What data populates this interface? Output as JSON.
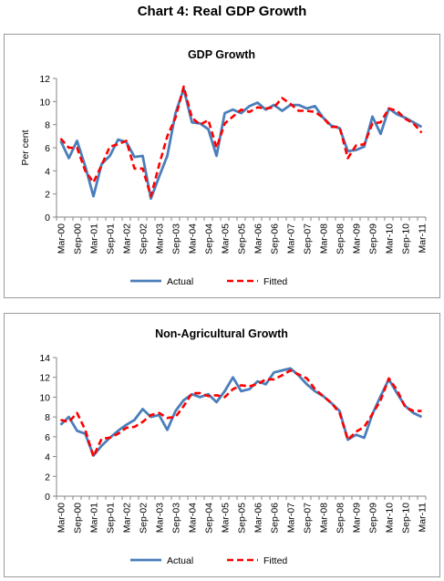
{
  "figure_title": "Chart 4: Real GDP Growth",
  "chart_data": [
    {
      "type": "line",
      "title": "GDP Growth",
      "xlabel": "",
      "ylabel": "Per cent",
      "ylim": [
        0,
        12
      ],
      "yticks": [
        0,
        2,
        4,
        6,
        8,
        10,
        12
      ],
      "grid": false,
      "legend": "bottom",
      "x": [
        "Mar-00",
        "Jun-00",
        "Sep-00",
        "Dec-00",
        "Mar-01",
        "Jun-01",
        "Sep-01",
        "Dec-01",
        "Mar-02",
        "Jun-02",
        "Sep-02",
        "Dec-02",
        "Mar-03",
        "Jun-03",
        "Sep-03",
        "Dec-03",
        "Mar-04",
        "Jun-04",
        "Sep-04",
        "Dec-04",
        "Mar-05",
        "Jun-05",
        "Sep-05",
        "Dec-05",
        "Mar-06",
        "Jun-06",
        "Sep-06",
        "Dec-06",
        "Mar-07",
        "Jun-07",
        "Sep-07",
        "Dec-07",
        "Mar-08",
        "Jun-08",
        "Sep-08",
        "Dec-08",
        "Mar-09",
        "Jun-09",
        "Sep-09",
        "Dec-09",
        "Mar-10",
        "Jun-10",
        "Sep-10",
        "Dec-10",
        "Mar-11"
      ],
      "tick_labels": [
        "Mar-00",
        "Sep-00",
        "Mar-01",
        "Sep-01",
        "Mar-02",
        "Sep-02",
        "Mar-03",
        "Sep-03",
        "Mar-04",
        "Sep-04",
        "Mar-05",
        "Sep-05",
        "Mar-06",
        "Sep-06",
        "Mar-07",
        "Sep-07",
        "Mar-08",
        "Sep-08",
        "Mar-09",
        "Sep-09",
        "Mar-10",
        "Sep-10",
        "Mar-11"
      ],
      "series": [
        {
          "name": "Actual",
          "color": "#4a7ebb",
          "style": "solid",
          "values": [
            6.6,
            5.1,
            6.6,
            4.4,
            1.8,
            4.6,
            5.3,
            6.7,
            6.5,
            5.2,
            5.3,
            1.6,
            3.5,
            5.3,
            9.0,
            11.1,
            8.2,
            8.1,
            7.6,
            5.3,
            9.0,
            9.3,
            9.0,
            9.6,
            9.9,
            9.3,
            9.7,
            9.2,
            9.7,
            9.7,
            9.4,
            9.6,
            8.6,
            7.9,
            7.7,
            5.7,
            5.8,
            6.1,
            8.7,
            7.2,
            9.4,
            8.9,
            8.6,
            8.2,
            7.8
          ]
        },
        {
          "name": "Fitted",
          "color": "#ff0000",
          "style": "dashed",
          "values": [
            6.8,
            6.0,
            6.0,
            4.0,
            3.0,
            4.5,
            6.1,
            6.3,
            6.6,
            4.2,
            4.2,
            1.8,
            4.5,
            7.0,
            8.6,
            11.3,
            8.6,
            8.0,
            8.4,
            6.0,
            8.1,
            8.7,
            9.3,
            9.1,
            9.5,
            9.4,
            9.5,
            10.3,
            9.8,
            9.2,
            9.2,
            9.1,
            8.6,
            7.8,
            7.8,
            5.1,
            6.2,
            6.3,
            8.1,
            8.2,
            9.4,
            9.2,
            8.5,
            8.1,
            7.3
          ]
        }
      ]
    },
    {
      "type": "line",
      "title": "Non-Agricultural Growth",
      "xlabel": "",
      "ylabel": "",
      "ylim": [
        0,
        14
      ],
      "yticks": [
        0,
        2,
        4,
        6,
        8,
        10,
        12,
        14
      ],
      "grid": false,
      "legend": "bottom",
      "x": [
        "Mar-00",
        "Jun-00",
        "Sep-00",
        "Dec-00",
        "Mar-01",
        "Jun-01",
        "Sep-01",
        "Dec-01",
        "Mar-02",
        "Jun-02",
        "Sep-02",
        "Dec-02",
        "Mar-03",
        "Jun-03",
        "Sep-03",
        "Dec-03",
        "Mar-04",
        "Jun-04",
        "Sep-04",
        "Dec-04",
        "Mar-05",
        "Jun-05",
        "Sep-05",
        "Dec-05",
        "Mar-06",
        "Jun-06",
        "Sep-06",
        "Dec-06",
        "Mar-07",
        "Jun-07",
        "Sep-07",
        "Dec-07",
        "Mar-08",
        "Jun-08",
        "Sep-08",
        "Dec-08",
        "Mar-09",
        "Jun-09",
        "Sep-09",
        "Dec-09",
        "Mar-10",
        "Jun-10",
        "Sep-10",
        "Dec-10",
        "Mar-11"
      ],
      "tick_labels": [
        "Mar-00",
        "Sep-00",
        "Mar-01",
        "Sep-01",
        "Mar-02",
        "Sep-02",
        "Mar-03",
        "Sep-03",
        "Mar-04",
        "Sep-04",
        "Mar-05",
        "Sep-05",
        "Mar-06",
        "Sep-06",
        "Mar-07",
        "Sep-07",
        "Mar-08",
        "Sep-08",
        "Mar-09",
        "Sep-09",
        "Mar-10",
        "Sep-10",
        "Mar-11"
      ],
      "series": [
        {
          "name": "Actual",
          "color": "#4a7ebb",
          "style": "solid",
          "values": [
            7.2,
            8.0,
            6.6,
            6.3,
            4.1,
            5.1,
            5.9,
            6.6,
            7.2,
            7.7,
            8.8,
            8.0,
            8.2,
            6.7,
            8.6,
            9.7,
            10.3,
            10.0,
            10.3,
            9.5,
            10.6,
            12.0,
            10.6,
            10.8,
            11.6,
            11.3,
            12.5,
            12.7,
            12.9,
            12.2,
            11.3,
            10.6,
            10.1,
            9.4,
            8.6,
            5.7,
            6.2,
            5.9,
            8.3,
            10.1,
            11.8,
            10.4,
            9.1,
            8.4,
            8.0
          ]
        },
        {
          "name": "Fitted",
          "color": "#ff0000",
          "style": "dashed",
          "values": [
            7.7,
            7.5,
            8.4,
            6.7,
            4.0,
            5.8,
            5.9,
            6.3,
            6.9,
            7.0,
            7.5,
            8.2,
            8.4,
            7.9,
            8.0,
            9.1,
            10.4,
            10.4,
            10.1,
            10.2,
            10.0,
            10.8,
            11.2,
            11.1,
            11.3,
            11.8,
            11.8,
            12.2,
            12.7,
            12.3,
            11.9,
            10.8,
            10.1,
            9.4,
            8.4,
            5.7,
            6.5,
            7.0,
            8.3,
            9.7,
            11.9,
            10.7,
            9.0,
            8.6,
            8.6
          ]
        }
      ]
    }
  ]
}
